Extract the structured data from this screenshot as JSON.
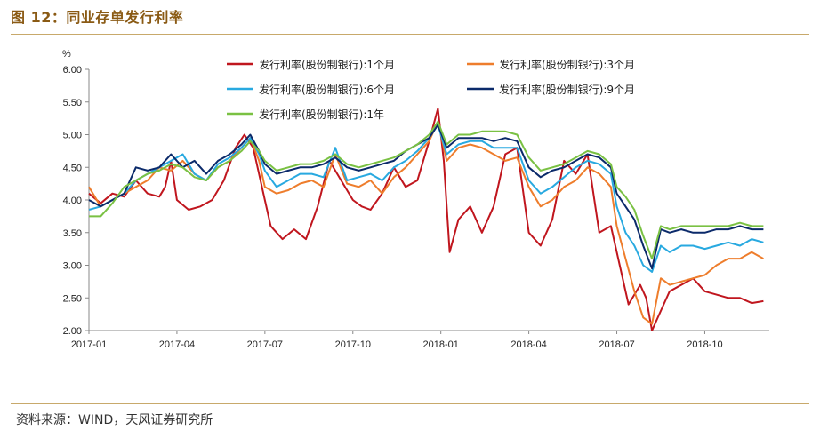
{
  "header": {
    "title": "图 12：同业存单发行利率"
  },
  "footer": {
    "source": "资料来源：WIND，天风证券研究所"
  },
  "chart_data": {
    "type": "line",
    "ylabel": "%",
    "ylim": [
      2.0,
      6.0
    ],
    "yticks": [
      "6.00",
      "5.50",
      "5.00",
      "4.50",
      "4.00",
      "3.50",
      "3.00",
      "2.50",
      "2.00"
    ],
    "xlim": [
      0,
      23.2
    ],
    "xticks": [
      {
        "pos": 0,
        "label": "2017-01"
      },
      {
        "pos": 3,
        "label": "2017-04"
      },
      {
        "pos": 6,
        "label": "2017-07"
      },
      {
        "pos": 9,
        "label": "2017-10"
      },
      {
        "pos": 12,
        "label": "2018-01"
      },
      {
        "pos": 15,
        "label": "2018-04"
      },
      {
        "pos": 18,
        "label": "2018-07"
      },
      {
        "pos": 21,
        "label": "2018-10"
      }
    ],
    "legend_position": "top",
    "series": [
      {
        "name": "发行利率(股份制银行):1个月",
        "color": "#c0161e",
        "x": [
          0,
          0.4,
          0.8,
          1.2,
          1.6,
          2.0,
          2.4,
          2.6,
          2.8,
          3.0,
          3.4,
          3.8,
          4.2,
          4.6,
          5.0,
          5.3,
          5.6,
          6.0,
          6.2,
          6.6,
          7.0,
          7.4,
          7.8,
          8.2,
          8.6,
          9.0,
          9.3,
          9.6,
          10.0,
          10.4,
          10.8,
          11.2,
          11.6,
          11.9,
          12.1,
          12.3,
          12.6,
          13.0,
          13.4,
          13.8,
          14.2,
          14.6,
          15.0,
          15.4,
          15.8,
          16.2,
          16.6,
          17.0,
          17.4,
          17.8,
          18.1,
          18.4,
          18.8,
          19.0,
          19.2,
          19.5,
          19.8,
          20.2,
          20.6,
          21.0,
          21.4,
          21.8,
          22.2,
          22.6,
          23.0
        ],
        "values": [
          4.1,
          3.95,
          4.1,
          4.05,
          4.3,
          4.1,
          4.05,
          4.2,
          4.6,
          4.0,
          3.85,
          3.9,
          4.0,
          4.3,
          4.8,
          5.0,
          4.8,
          4.0,
          3.6,
          3.4,
          3.55,
          3.4,
          3.9,
          4.6,
          4.3,
          4.0,
          3.9,
          3.85,
          4.1,
          4.5,
          4.2,
          4.3,
          4.9,
          5.4,
          4.6,
          3.2,
          3.7,
          3.9,
          3.5,
          3.9,
          4.7,
          4.8,
          3.5,
          3.3,
          3.7,
          4.6,
          4.4,
          4.7,
          3.5,
          3.6,
          3.0,
          2.4,
          2.7,
          2.5,
          2.0,
          2.3,
          2.6,
          2.7,
          2.8,
          2.6,
          2.55,
          2.5,
          2.5,
          2.42,
          2.45
        ]
      },
      {
        "name": "发行利率(股份制银行):3个月",
        "color": "#ee7d2c",
        "x": [
          0,
          0.4,
          0.8,
          1.2,
          1.6,
          2.0,
          2.4,
          2.8,
          3.2,
          3.6,
          4.0,
          4.4,
          4.8,
          5.2,
          5.5,
          5.8,
          6.0,
          6.4,
          6.8,
          7.2,
          7.6,
          8.0,
          8.4,
          8.8,
          9.2,
          9.6,
          10.0,
          10.4,
          10.8,
          11.2,
          11.6,
          11.9,
          12.2,
          12.6,
          13.0,
          13.4,
          13.8,
          14.2,
          14.6,
          15.0,
          15.4,
          15.8,
          16.2,
          16.6,
          17.0,
          17.4,
          17.8,
          18.0,
          18.3,
          18.6,
          18.9,
          19.2,
          19.5,
          19.8,
          20.2,
          20.6,
          21.0,
          21.4,
          21.8,
          22.2,
          22.6,
          23.0
        ],
        "values": [
          4.2,
          3.9,
          4.0,
          4.1,
          4.2,
          4.3,
          4.5,
          4.45,
          4.6,
          4.4,
          4.3,
          4.5,
          4.6,
          4.8,
          4.95,
          4.6,
          4.2,
          4.1,
          4.15,
          4.25,
          4.3,
          4.2,
          4.7,
          4.25,
          4.2,
          4.3,
          4.1,
          4.35,
          4.5,
          4.7,
          4.9,
          5.2,
          4.6,
          4.8,
          4.85,
          4.8,
          4.7,
          4.6,
          4.65,
          4.2,
          3.9,
          4.0,
          4.2,
          4.3,
          4.5,
          4.4,
          4.2,
          3.6,
          3.1,
          2.6,
          2.2,
          2.1,
          2.8,
          2.7,
          2.75,
          2.8,
          2.85,
          3.0,
          3.1,
          3.1,
          3.2,
          3.1
        ]
      },
      {
        "name": "发行利率(股份制银行):6个月",
        "color": "#28a9e0",
        "x": [
          0,
          0.4,
          0.8,
          1.2,
          1.6,
          2.0,
          2.4,
          2.8,
          3.2,
          3.6,
          4.0,
          4.4,
          4.8,
          5.2,
          5.5,
          5.8,
          6.0,
          6.4,
          6.8,
          7.2,
          7.6,
          8.0,
          8.4,
          8.8,
          9.2,
          9.6,
          10.0,
          10.4,
          10.8,
          11.2,
          11.6,
          11.9,
          12.2,
          12.6,
          13.0,
          13.4,
          13.8,
          14.2,
          14.6,
          15.0,
          15.4,
          15.8,
          16.2,
          16.6,
          17.0,
          17.4,
          17.8,
          18.0,
          18.3,
          18.6,
          18.9,
          19.2,
          19.5,
          19.8,
          20.2,
          20.6,
          21.0,
          21.4,
          21.8,
          22.2,
          22.6,
          23.0
        ],
        "values": [
          3.85,
          3.9,
          4.0,
          4.1,
          4.3,
          4.4,
          4.5,
          4.6,
          4.7,
          4.4,
          4.3,
          4.55,
          4.65,
          4.8,
          4.95,
          4.7,
          4.45,
          4.2,
          4.3,
          4.4,
          4.4,
          4.35,
          4.8,
          4.3,
          4.35,
          4.4,
          4.3,
          4.5,
          4.6,
          4.75,
          4.95,
          5.15,
          4.7,
          4.85,
          4.9,
          4.9,
          4.8,
          4.8,
          4.8,
          4.3,
          4.1,
          4.2,
          4.35,
          4.5,
          4.6,
          4.55,
          4.4,
          3.9,
          3.5,
          3.3,
          3.0,
          2.9,
          3.3,
          3.2,
          3.3,
          3.3,
          3.25,
          3.3,
          3.35,
          3.3,
          3.4,
          3.35
        ]
      },
      {
        "name": "发行利率(股份制银行):9个月",
        "color": "#0b2a6a",
        "x": [
          0,
          0.4,
          0.8,
          1.2,
          1.6,
          2.0,
          2.4,
          2.8,
          3.2,
          3.6,
          4.0,
          4.4,
          4.8,
          5.2,
          5.5,
          5.8,
          6.0,
          6.4,
          6.8,
          7.2,
          7.6,
          8.0,
          8.4,
          8.8,
          9.2,
          9.6,
          10.0,
          10.4,
          10.8,
          11.2,
          11.6,
          11.9,
          12.2,
          12.6,
          13.0,
          13.4,
          13.8,
          14.2,
          14.6,
          15.0,
          15.4,
          15.8,
          16.2,
          16.6,
          17.0,
          17.4,
          17.8,
          18.0,
          18.3,
          18.6,
          18.9,
          19.2,
          19.5,
          19.8,
          20.2,
          20.6,
          21.0,
          21.4,
          21.8,
          22.2,
          22.6,
          23.0
        ],
        "values": [
          4.0,
          3.9,
          4.0,
          4.1,
          4.5,
          4.45,
          4.5,
          4.7,
          4.5,
          4.6,
          4.4,
          4.6,
          4.7,
          4.85,
          5.0,
          4.75,
          4.55,
          4.4,
          4.45,
          4.5,
          4.5,
          4.55,
          4.65,
          4.5,
          4.45,
          4.5,
          4.55,
          4.6,
          4.75,
          4.85,
          4.95,
          5.15,
          4.8,
          4.95,
          4.95,
          4.95,
          4.9,
          4.95,
          4.9,
          4.5,
          4.35,
          4.45,
          4.5,
          4.6,
          4.7,
          4.65,
          4.5,
          4.1,
          3.9,
          3.7,
          3.3,
          2.95,
          3.55,
          3.5,
          3.55,
          3.5,
          3.5,
          3.55,
          3.55,
          3.6,
          3.55,
          3.55
        ]
      },
      {
        "name": "发行利率(股份制银行):1年",
        "color": "#7ac143",
        "x": [
          0,
          0.4,
          0.8,
          1.2,
          1.6,
          2.0,
          2.4,
          2.8,
          3.2,
          3.6,
          4.0,
          4.4,
          4.8,
          5.2,
          5.5,
          5.8,
          6.0,
          6.4,
          6.8,
          7.2,
          7.6,
          8.0,
          8.4,
          8.8,
          9.2,
          9.6,
          10.0,
          10.4,
          10.8,
          11.2,
          11.6,
          11.9,
          12.2,
          12.6,
          13.0,
          13.4,
          13.8,
          14.2,
          14.6,
          15.0,
          15.4,
          15.8,
          16.2,
          16.6,
          17.0,
          17.4,
          17.8,
          18.0,
          18.3,
          18.6,
          18.9,
          19.2,
          19.5,
          19.8,
          20.2,
          20.6,
          21.0,
          21.4,
          21.8,
          22.2,
          22.6,
          23.0
        ],
        "values": [
          3.75,
          3.75,
          3.95,
          4.2,
          4.3,
          4.4,
          4.45,
          4.55,
          4.5,
          4.35,
          4.3,
          4.5,
          4.6,
          4.75,
          4.9,
          4.75,
          4.6,
          4.45,
          4.5,
          4.55,
          4.55,
          4.6,
          4.7,
          4.55,
          4.5,
          4.55,
          4.6,
          4.65,
          4.75,
          4.85,
          5.0,
          5.2,
          4.85,
          5.0,
          5.0,
          5.05,
          5.05,
          5.05,
          5.0,
          4.65,
          4.45,
          4.5,
          4.55,
          4.65,
          4.75,
          4.7,
          4.55,
          4.2,
          4.05,
          3.85,
          3.45,
          3.1,
          3.6,
          3.55,
          3.6,
          3.6,
          3.6,
          3.6,
          3.6,
          3.65,
          3.6,
          3.6
        ]
      }
    ]
  }
}
